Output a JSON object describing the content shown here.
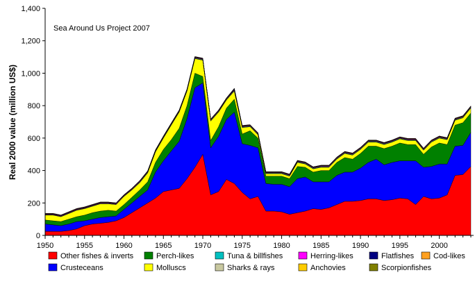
{
  "chart_data": {
    "type": "area",
    "stacked": true,
    "title": "",
    "annotation": "Sea Around Us Project 2007",
    "xlabel": "",
    "ylabel": "Real 2000 value (million US$)",
    "xlim": [
      1950,
      2004
    ],
    "ylim": [
      0,
      1400
    ],
    "xticks": [
      "1950",
      "1955",
      "1960",
      "1965",
      "1970",
      "1975",
      "1980",
      "1985",
      "1990",
      "1995",
      "2000"
    ],
    "yticks": [
      "0",
      "200",
      "400",
      "600",
      "800",
      "1,000",
      "1,200",
      "1,400"
    ],
    "x": [
      1950,
      1951,
      1952,
      1953,
      1954,
      1955,
      1956,
      1957,
      1958,
      1959,
      1960,
      1961,
      1962,
      1963,
      1964,
      1965,
      1966,
      1967,
      1968,
      1969,
      1970,
      1971,
      1972,
      1973,
      1974,
      1975,
      1976,
      1977,
      1978,
      1979,
      1980,
      1981,
      1982,
      1983,
      1984,
      1985,
      1986,
      1987,
      1988,
      1989,
      1990,
      1991,
      1992,
      1993,
      1994,
      1995,
      1996,
      1997,
      1998,
      1999,
      2000,
      2001,
      2002,
      2003,
      2004
    ],
    "series": [
      {
        "name": "Other fishes & inverts",
        "color": "#ff0000",
        "values": [
          25,
          25,
          25,
          30,
          40,
          60,
          70,
          75,
          80,
          90,
          110,
          140,
          170,
          200,
          230,
          270,
          280,
          290,
          350,
          420,
          500,
          250,
          270,
          345,
          320,
          265,
          225,
          240,
          150,
          150,
          145,
          130,
          140,
          150,
          165,
          160,
          170,
          190,
          210,
          210,
          215,
          225,
          225,
          215,
          220,
          230,
          225,
          190,
          240,
          225,
          230,
          250,
          370,
          375,
          425
        ]
      },
      {
        "name": "Crusteceans",
        "color": "#0000ff",
        "values": [
          45,
          40,
          35,
          40,
          45,
          30,
          30,
          35,
          35,
          30,
          50,
          60,
          70,
          80,
          160,
          190,
          240,
          290,
          370,
          490,
          440,
          290,
          340,
          370,
          440,
          300,
          330,
          300,
          170,
          165,
          170,
          170,
          210,
          210,
          165,
          170,
          160,
          180,
          180,
          180,
          200,
          225,
          245,
          220,
          230,
          230,
          235,
          270,
          180,
          200,
          210,
          190,
          180,
          180,
          210
        ]
      },
      {
        "name": "Perch-likes",
        "color": "#008000",
        "values": [
          25,
          25,
          25,
          30,
          30,
          35,
          40,
          40,
          40,
          30,
          30,
          35,
          40,
          50,
          60,
          70,
          70,
          80,
          80,
          90,
          40,
          45,
          60,
          70,
          80,
          60,
          90,
          60,
          45,
          50,
          50,
          50,
          75,
          60,
          60,
          70,
          70,
          80,
          90,
          80,
          90,
          100,
          80,
          100,
          100,
          110,
          100,
          100,
          80,
          120,
          130,
          120,
          130,
          140,
          120
        ]
      },
      {
        "name": "Molluscs",
        "color": "#ffff00",
        "values": [
          30,
          35,
          30,
          35,
          40,
          40,
          40,
          45,
          40,
          40,
          50,
          45,
          45,
          55,
          65,
          70,
          90,
          100,
          90,
          90,
          100,
          120,
          90,
          50,
          50,
          40,
          25,
          20,
          15,
          15,
          15,
          15,
          25,
          20,
          20,
          20,
          20,
          20,
          25,
          25,
          25,
          25,
          25,
          25,
          25,
          25,
          25,
          25,
          25,
          30,
          30,
          30,
          30,
          30,
          30
        ]
      },
      {
        "name": "Tuna & billfishes",
        "color": "#00c0c0",
        "values": [
          2,
          2,
          2,
          2,
          2,
          2,
          2,
          2,
          2,
          2,
          2,
          2,
          3,
          3,
          3,
          3,
          3,
          3,
          3,
          3,
          3,
          3,
          3,
          3,
          3,
          3,
          3,
          3,
          3,
          3,
          3,
          3,
          3,
          3,
          3,
          3,
          3,
          3,
          3,
          3,
          3,
          3,
          3,
          3,
          3,
          3,
          3,
          3,
          3,
          3,
          3,
          3,
          3,
          3,
          3
        ]
      },
      {
        "name": "Sharks & rays",
        "color": "#c8c8a0",
        "values": [
          2,
          2,
          2,
          2,
          2,
          2,
          2,
          2,
          2,
          2,
          2,
          2,
          3,
          3,
          3,
          3,
          3,
          3,
          3,
          3,
          3,
          3,
          3,
          3,
          3,
          3,
          3,
          3,
          3,
          3,
          3,
          3,
          3,
          3,
          3,
          3,
          3,
          3,
          3,
          3,
          3,
          3,
          3,
          3,
          3,
          3,
          3,
          3,
          3,
          3,
          3,
          3,
          3,
          3,
          3
        ]
      },
      {
        "name": "Herring-likes",
        "color": "#ff00ff",
        "values": [
          3,
          3,
          3,
          3,
          3,
          3,
          3,
          3,
          3,
          3,
          3,
          3,
          3,
          3,
          3,
          3,
          3,
          3,
          3,
          3,
          3,
          3,
          3,
          3,
          3,
          3,
          3,
          3,
          3,
          3,
          3,
          3,
          3,
          3,
          3,
          3,
          3,
          3,
          3,
          3,
          3,
          3,
          3,
          3,
          3,
          3,
          3,
          3,
          3,
          3,
          3,
          3,
          3,
          3,
          3
        ]
      },
      {
        "name": "Anchovies",
        "color": "#ffcc00",
        "values": [
          1,
          1,
          1,
          1,
          1,
          1,
          1,
          1,
          1,
          1,
          1,
          1,
          1,
          1,
          1,
          1,
          1,
          1,
          1,
          1,
          1,
          1,
          1,
          1,
          1,
          1,
          1,
          1,
          1,
          1,
          1,
          1,
          1,
          1,
          1,
          1,
          1,
          1,
          1,
          1,
          1,
          1,
          1,
          1,
          1,
          1,
          1,
          1,
          1,
          1,
          1,
          1,
          1,
          1,
          1
        ]
      },
      {
        "name": "Flatfishes",
        "color": "#000080",
        "values": [
          1,
          1,
          1,
          1,
          1,
          1,
          1,
          1,
          1,
          1,
          1,
          1,
          1,
          1,
          1,
          1,
          1,
          1,
          1,
          1,
          1,
          1,
          1,
          1,
          5,
          1,
          1,
          1,
          1,
          1,
          1,
          1,
          1,
          1,
          1,
          1,
          1,
          1,
          1,
          1,
          1,
          1,
          1,
          1,
          1,
          1,
          1,
          1,
          1,
          1,
          1,
          1,
          1,
          1,
          1
        ]
      },
      {
        "name": "Scorpionfishes",
        "color": "#808000",
        "values": [
          1,
          1,
          1,
          1,
          1,
          1,
          1,
          1,
          1,
          1,
          1,
          1,
          1,
          1,
          1,
          1,
          1,
          1,
          1,
          1,
          1,
          1,
          1,
          1,
          1,
          1,
          1,
          1,
          1,
          1,
          1,
          1,
          1,
          1,
          1,
          1,
          1,
          1,
          1,
          1,
          1,
          1,
          1,
          1,
          1,
          1,
          1,
          1,
          1,
          1,
          1,
          1,
          1,
          1,
          1
        ]
      },
      {
        "name": "Cod-likes",
        "color": "#ffa020",
        "values": [
          1,
          1,
          1,
          1,
          1,
          1,
          1,
          1,
          1,
          1,
          1,
          1,
          1,
          1,
          1,
          1,
          1,
          1,
          1,
          1,
          1,
          1,
          1,
          1,
          1,
          1,
          1,
          1,
          1,
          1,
          1,
          1,
          1,
          1,
          1,
          1,
          1,
          1,
          1,
          1,
          1,
          1,
          1,
          1,
          1,
          1,
          1,
          1,
          1,
          1,
          1,
          1,
          1,
          1,
          1
        ]
      }
    ],
    "legend": {
      "placement": "bottom",
      "columns": 5,
      "order": [
        "Other fishes & inverts",
        "Perch-likes",
        "Tuna & billfishes",
        "Herring-likes",
        "Flatfishes",
        "Cod-likes",
        "Crusteceans",
        "Molluscs",
        "Sharks & rays",
        "Anchovies",
        "Scorpionfishes"
      ]
    }
  }
}
